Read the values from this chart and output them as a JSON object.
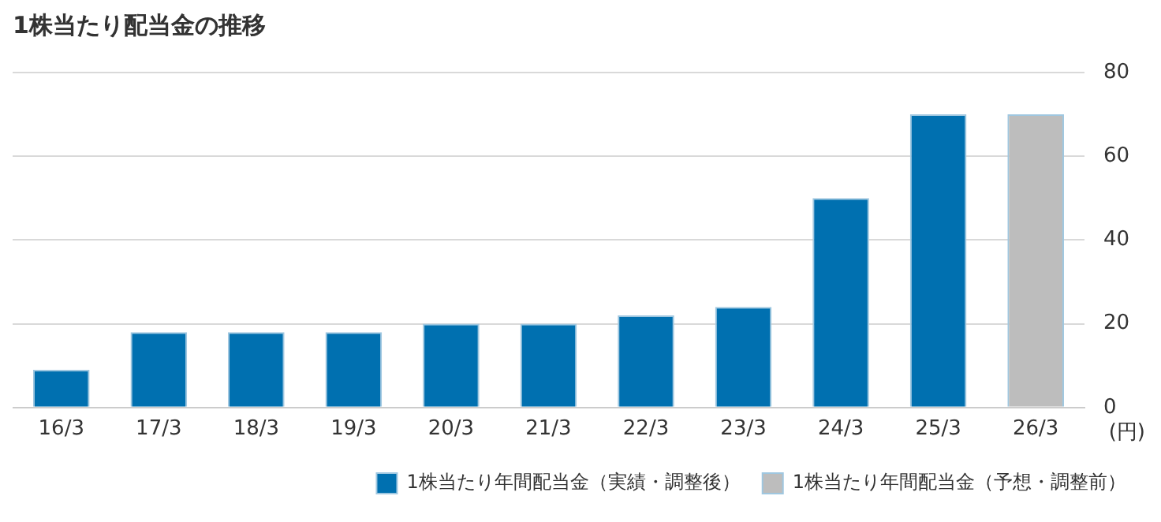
{
  "chart_data": {
    "type": "bar",
    "title": "1株当たり配当金の推移",
    "ylabel": "(円)",
    "categories": [
      "16/3",
      "17/3",
      "18/3",
      "19/3",
      "20/3",
      "21/3",
      "22/3",
      "23/3",
      "24/3",
      "25/3",
      "26/3"
    ],
    "series": [
      {
        "name": "1株当たり年間配当金（実績・調整後）",
        "color": "#0070b0",
        "values": [
          9,
          18,
          18,
          18,
          20,
          20,
          22,
          24,
          50,
          70,
          null
        ]
      },
      {
        "name": "1株当たり年間配当金（予想・調整前）",
        "color": "#bdbdbd",
        "values": [
          null,
          null,
          null,
          null,
          null,
          null,
          null,
          null,
          null,
          null,
          70
        ]
      }
    ],
    "stacked": true,
    "ylim": [
      0,
      80
    ],
    "yticks": [
      0,
      20,
      40,
      60,
      80
    ],
    "grid": "y",
    "legend": "bottom right"
  }
}
